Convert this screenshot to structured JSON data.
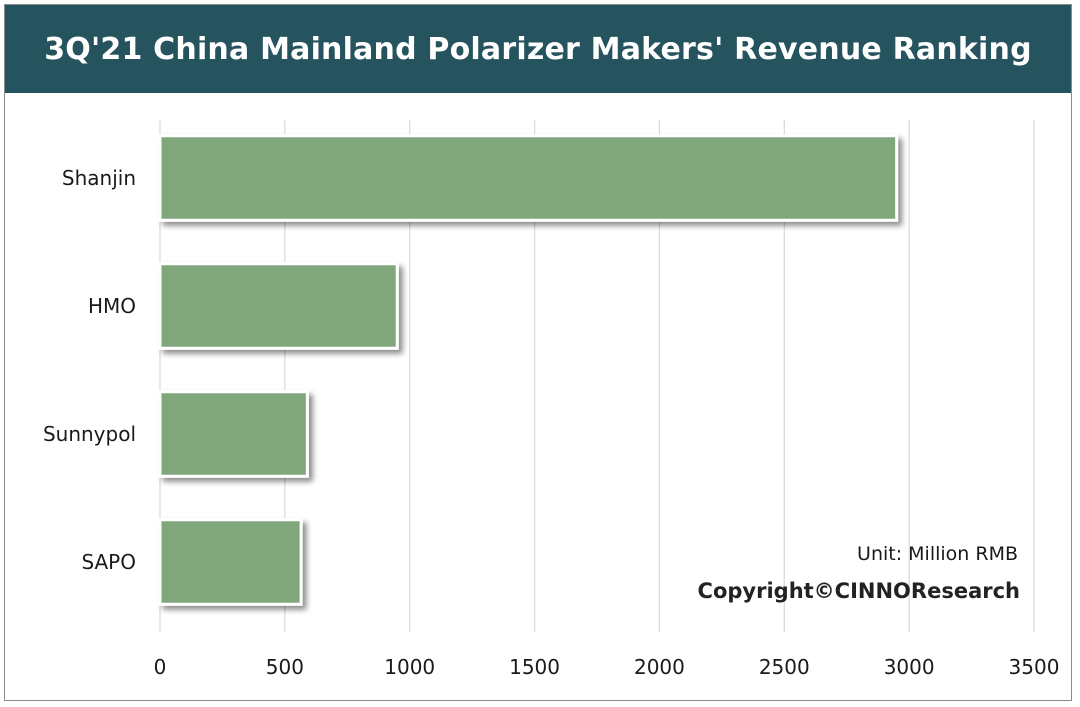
{
  "chart_data": {
    "type": "bar",
    "orientation": "horizontal",
    "title": "3Q'21 China Mainland Polarizer Makers' Revenue Ranking",
    "categories": [
      "Shanjin",
      "HMO",
      "Sunnypol",
      "SAPO"
    ],
    "values": [
      2950,
      950,
      590,
      565
    ],
    "xlim": [
      0,
      3500
    ],
    "xticks": [
      "0",
      "500",
      "1000",
      "1500",
      "2000",
      "2500",
      "3000",
      "3500"
    ],
    "grid": true,
    "legend": "none",
    "unit_note": "Unit: Million RMB",
    "copyright": "Copyright©CINNOResearch",
    "colors": {
      "title_background": "#25535e",
      "title_text": "#ffffff",
      "bar_fill": "#80a67b",
      "bar_edge": "#ffffff",
      "grid": "#d9d9d9"
    }
  }
}
